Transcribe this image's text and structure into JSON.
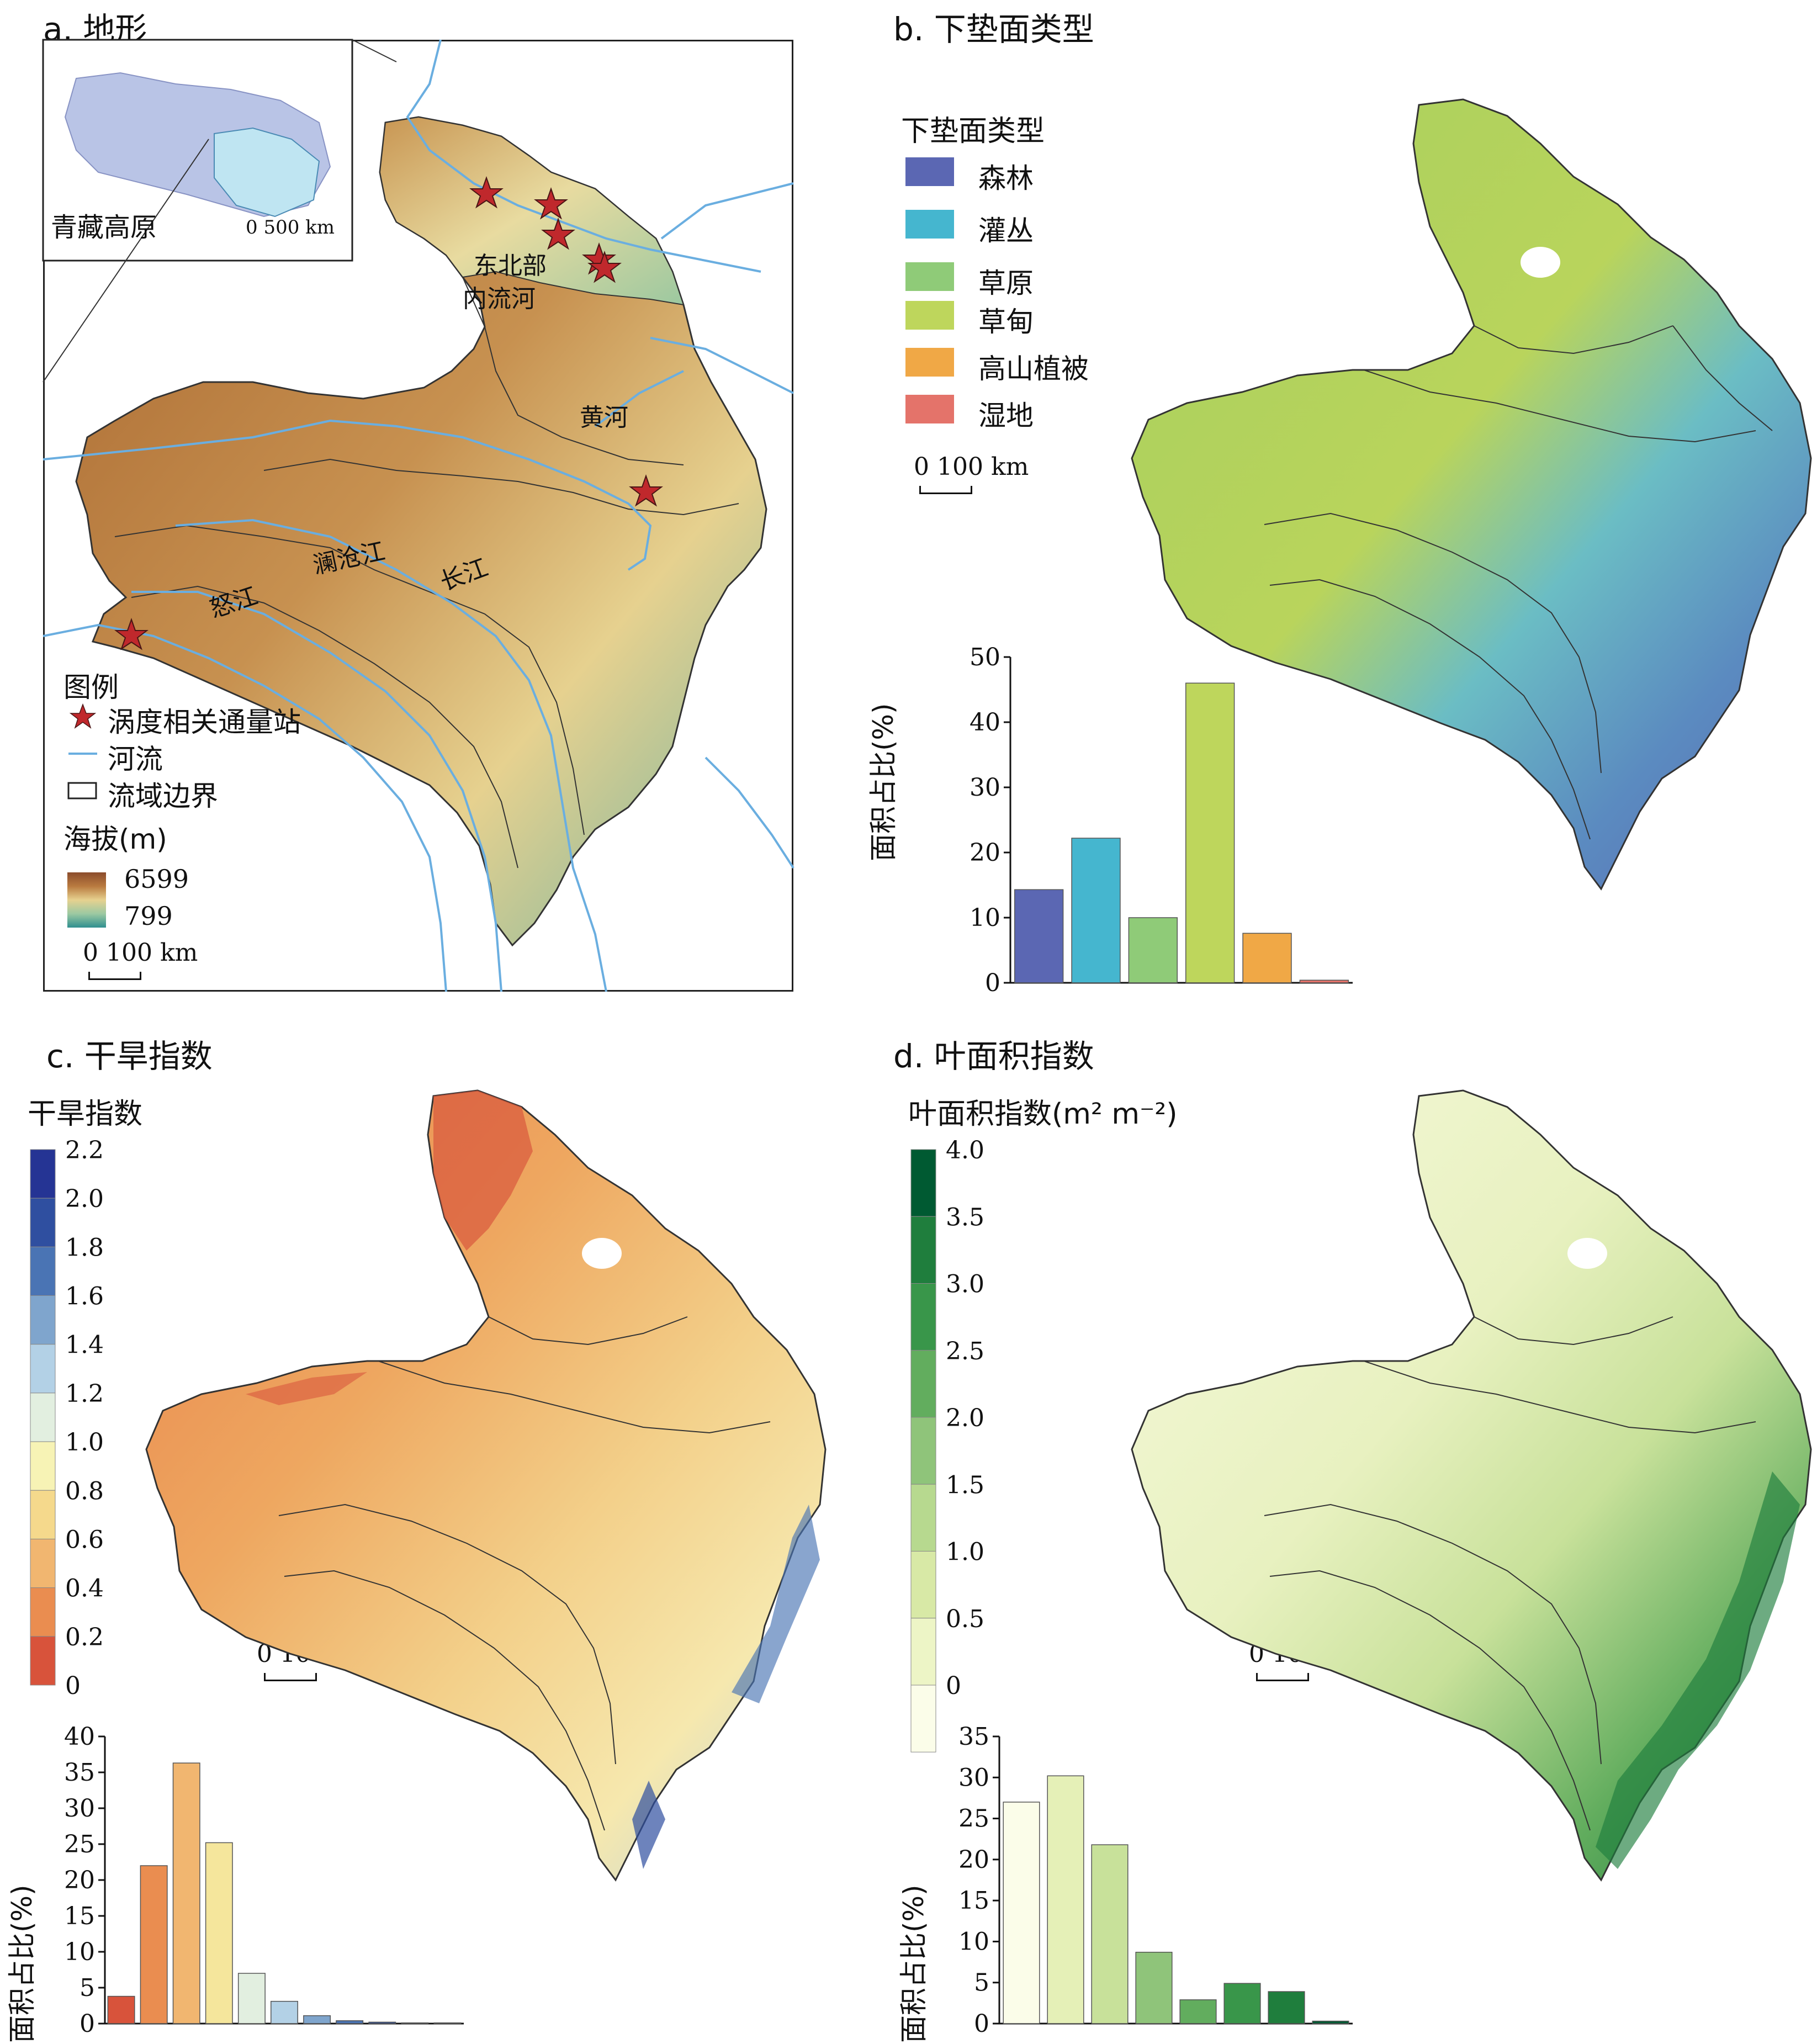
{
  "panels": {
    "a": {
      "title": "a. 地形",
      "inset_label": "青藏高原",
      "inset_scale": "0  500 km",
      "region_labels": [
        "东北部",
        "内流河",
        "黄河",
        "澜沧江",
        "长江",
        "怒江"
      ],
      "legend_title": "图例",
      "legend_items": [
        "涡度相关通量站",
        "河流",
        "流域边界"
      ],
      "elev_title": "海拔(m)",
      "elev_max": "6599",
      "elev_min": "799",
      "scale": "0  100 km",
      "colors": {
        "river": "#6aaee0",
        "star": "#c0282c"
      }
    },
    "b": {
      "title": "b. 下垫面类型",
      "legend_title": "下垫面类型",
      "scale": "0  100 km",
      "categories": [
        {
          "label": "森林",
          "color": "#5b67b3"
        },
        {
          "label": "灌丛",
          "color": "#45b6cf"
        },
        {
          "label": "草原",
          "color": "#8fcb78"
        },
        {
          "label": "草甸",
          "color": "#bed65c"
        },
        {
          "label": "高山植被",
          "color": "#f0a846"
        },
        {
          "label": "湿地",
          "color": "#e4736a"
        }
      ]
    },
    "c": {
      "title": "c. 干旱指数",
      "legend_title": "干旱指数",
      "scale": "0  100 km",
      "ticks": [
        "2.2",
        "2.0",
        "1.8",
        "1.6",
        "1.4",
        "1.2",
        "1.0",
        "0.8",
        "0.6",
        "0.4",
        "0.2",
        "0"
      ],
      "colors": [
        "#253494",
        "#2f4fa0",
        "#4a74b4",
        "#7fa5cd",
        "#b3d1e6",
        "#e2efe0",
        "#f7f3b5",
        "#f5d98c",
        "#f1b670",
        "#ea8d50",
        "#d8533b"
      ]
    },
    "d": {
      "title": "d. 叶面积指数",
      "legend_title": "叶面积指数(m² m⁻²)",
      "scale": "0  100 km",
      "ticks": [
        "4.0",
        "3.5",
        "3.0",
        "2.5",
        "2.0",
        "1.5",
        "1.0",
        "0.5",
        "0"
      ],
      "colors": [
        "#005a32",
        "#1f7e3d",
        "#39964a",
        "#62ad5e",
        "#8fc47a",
        "#b7d98f",
        "#d8e9a6",
        "#edf5c6",
        "#fbfde9"
      ]
    }
  },
  "chart_data": [
    {
      "type": "bar",
      "panel": "b",
      "ylabel": "面积占比(%)",
      "ylim": [
        0,
        50
      ],
      "yticks": [
        "0",
        "10",
        "20",
        "30",
        "40",
        "50"
      ],
      "categories": [
        "森林",
        "灌丛",
        "草原",
        "草甸",
        "高山植被",
        "湿地"
      ],
      "values": [
        14.3,
        22.2,
        10.0,
        46.0,
        7.6,
        0.4
      ],
      "colors": [
        "#5b67b3",
        "#45b6cf",
        "#8fcb78",
        "#bed65c",
        "#f0a846",
        "#e4736a"
      ]
    },
    {
      "type": "bar",
      "panel": "c",
      "ylabel": "面积占比(%)",
      "ylim": [
        0,
        40
      ],
      "yticks": [
        "0",
        "5",
        "10",
        "15",
        "20",
        "25",
        "30",
        "35",
        "40"
      ],
      "categories": [
        "0-0.2",
        "0.2-0.4",
        "0.4-0.6",
        "0.6-0.8",
        "0.8-1.0",
        "1.0-1.2",
        "1.2-1.4",
        "1.4-1.6",
        "1.6-1.8",
        "1.8-2.0",
        "2.0-2.2"
      ],
      "values": [
        3.8,
        22.0,
        36.3,
        25.2,
        7.0,
        3.1,
        1.1,
        0.4,
        0.2,
        0.1,
        0.1
      ],
      "colors": [
        "#d8533b",
        "#ea8d50",
        "#f1b670",
        "#f5e69c",
        "#e2efe0",
        "#b3d1e6",
        "#7fa5cd",
        "#4a74b4",
        "#2f4fa0",
        "#283f97",
        "#253494"
      ]
    },
    {
      "type": "bar",
      "panel": "d",
      "ylabel": "面积占比(%)",
      "ylim": [
        0,
        35
      ],
      "yticks": [
        "0",
        "5",
        "10",
        "15",
        "20",
        "25",
        "30",
        "35"
      ],
      "categories": [
        "0-0.5",
        "0.5-1.0",
        "1.0-1.5",
        "1.5-2.0",
        "2.0-2.5",
        "2.5-3.0",
        "3.0-3.5",
        "3.5-4.0"
      ],
      "values": [
        27.0,
        30.2,
        21.8,
        8.7,
        2.9,
        4.9,
        3.9,
        0.3
      ],
      "colors": [
        "#fbfde9",
        "#e5f0b7",
        "#c8e19a",
        "#8fc47a",
        "#62ad5e",
        "#39964a",
        "#1f7e3d",
        "#005a32"
      ]
    }
  ]
}
